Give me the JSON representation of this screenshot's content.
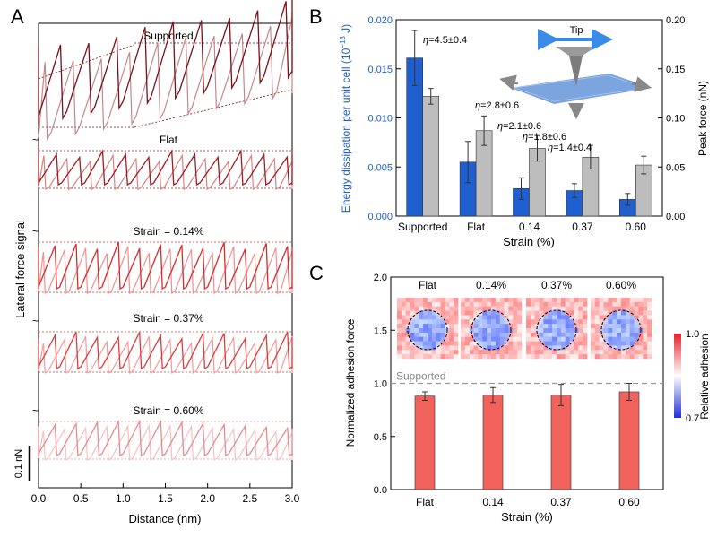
{
  "chart_data": [
    {
      "panel": "A",
      "type": "line",
      "xlabel": "Distance (nm)",
      "ylabel": "Lateral force signal",
      "xlim": [
        0,
        3.0
      ],
      "xticks": [
        "0.0",
        "0.5",
        "1.0",
        "1.5",
        "2.0",
        "2.5",
        "3.0"
      ],
      "scale_bar": "0.1 nN",
      "traces": [
        {
          "label": "Supported",
          "color_dark": "#7a1018",
          "color_light": "#c4868a",
          "slips": 9
        },
        {
          "label": "Flat",
          "color_dark": "#a51a1f",
          "color_light": "#e08080",
          "slips": 11
        },
        {
          "label": "Strain = 0.14%",
          "color_dark": "#d92b2b",
          "color_light": "#ef9090",
          "slips": 12
        },
        {
          "label": "Strain = 0.37%",
          "color_dark": "#e03a3a",
          "color_light": "#f29a9a",
          "slips": 12
        },
        {
          "label": "Strain = 0.60%",
          "color_dark": "#eb8a8a",
          "color_light": "#f5c0c0",
          "slips": 12
        }
      ]
    },
    {
      "panel": "B",
      "type": "bar",
      "xlabel": "Strain (%)",
      "ylabel_left": "Energy dissipation per unit cell (10",
      "ylabel_left_sup": "−18",
      "ylabel_left_end": " J)",
      "ylabel_right": "Peak force (nN)",
      "categories": [
        "Supported",
        "Flat",
        "0.14",
        "0.37",
        "0.60"
      ],
      "ylim_left": [
        0,
        0.02
      ],
      "yticks_left": [
        "0.000",
        "0.005",
        "0.010",
        "0.015",
        "0.020"
      ],
      "ylim_right": [
        0,
        0.2
      ],
      "yticks_right": [
        "0.00",
        "0.05",
        "0.10",
        "0.15",
        "0.20"
      ],
      "series": [
        {
          "axis": "left",
          "color": "#1f5fd0",
          "values": [
            0.0161,
            0.0055,
            0.0028,
            0.0026,
            0.0017
          ],
          "errors": [
            0.0028,
            0.0021,
            0.0011,
            0.0007,
            0.0006
          ]
        },
        {
          "axis": "right",
          "color": "#bdbdbd",
          "values": [
            0.122,
            0.087,
            0.069,
            0.06,
            0.052
          ],
          "errors": [
            0.008,
            0.015,
            0.013,
            0.012,
            0.009
          ]
        }
      ],
      "annotations": [
        {
          "prefix": "η",
          "text": "=4.5±0.4",
          "category": "Supported"
        },
        {
          "prefix": "η",
          "text": "=2.8±0.6",
          "category": "Flat"
        },
        {
          "prefix": "η",
          "text": "=2.1±0.6",
          "category": "0.14"
        },
        {
          "prefix": "η",
          "text": "=1.8±0.6",
          "category": "0.37"
        },
        {
          "prefix": "η",
          "text": "=1.4±0.4",
          "category": "0.60"
        }
      ],
      "inset_label": "Tip"
    },
    {
      "panel": "C",
      "type": "bar",
      "xlabel": "Strain (%)",
      "ylabel": "Normalized adhesion force",
      "categories": [
        "Flat",
        "0.14",
        "0.37",
        "0.60"
      ],
      "ylim": [
        0,
        2.0
      ],
      "yticks": [
        "0.0",
        "0.5",
        "1.0",
        "1.5",
        "2.0"
      ],
      "values": [
        0.88,
        0.89,
        0.89,
        0.92
      ],
      "errors": [
        0.04,
        0.07,
        0.1,
        0.08
      ],
      "color": "#f2625c",
      "reference_line": {
        "label": "Supported",
        "value": 1.0
      },
      "map_titles": [
        "Flat",
        "0.14%",
        "0.37%",
        "0.60%"
      ],
      "colorbar": {
        "label": "Relative adhesion",
        "max": "1.0",
        "min": "0.7"
      }
    }
  ],
  "panel_letters": [
    "A",
    "B",
    "C"
  ]
}
